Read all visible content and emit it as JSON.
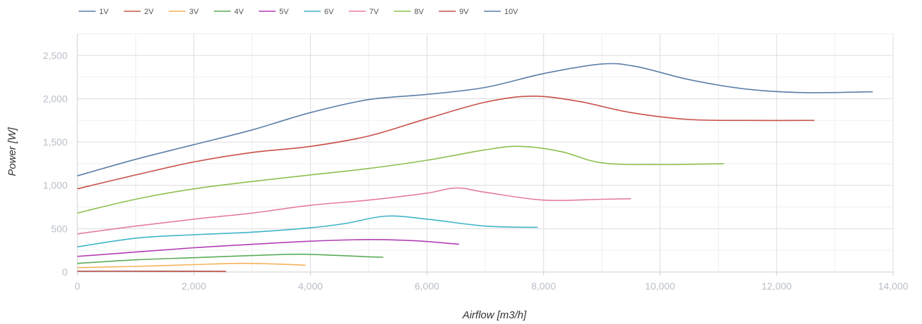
{
  "chart_data": {
    "type": "line",
    "title": "",
    "xlabel": "Airflow [m3/h]",
    "ylabel": "Power [W]",
    "xlim": [
      0,
      14000
    ],
    "ylim": [
      0,
      2750
    ],
    "x_ticks": [
      0,
      2000,
      4000,
      6000,
      8000,
      10000,
      12000,
      14000
    ],
    "x_tick_labels": [
      "0",
      "2,000",
      "4,000",
      "6,000",
      "8,000",
      "10,000",
      "12,000",
      "14,000"
    ],
    "y_ticks": [
      0,
      500,
      1000,
      1500,
      2000,
      2500
    ],
    "y_tick_labels": [
      "0",
      "500",
      "1,000",
      "1,500",
      "2,000",
      "2,500"
    ],
    "grid": true,
    "legend_position": "top-left",
    "series": [
      {
        "name": "1V",
        "color": "#5b7fa8",
        "points": [
          [
            0,
            10
          ],
          [
            1000,
            10
          ],
          [
            2000,
            9
          ],
          [
            2550,
            8
          ]
        ]
      },
      {
        "name": "2V",
        "color": "#cc5a4a",
        "points": [
          [
            0,
            8
          ],
          [
            1000,
            8
          ],
          [
            2000,
            7
          ],
          [
            2550,
            6
          ]
        ]
      },
      {
        "name": "3V",
        "color": "#f6b25c",
        "points": [
          [
            0,
            50
          ],
          [
            1000,
            65
          ],
          [
            2000,
            85
          ],
          [
            2800,
            100
          ],
          [
            3500,
            90
          ],
          [
            3920,
            78
          ]
        ]
      },
      {
        "name": "4V",
        "color": "#5aac58",
        "points": [
          [
            0,
            100
          ],
          [
            1000,
            140
          ],
          [
            2000,
            165
          ],
          [
            3000,
            190
          ],
          [
            3800,
            205
          ],
          [
            4500,
            190
          ],
          [
            5000,
            175
          ],
          [
            5250,
            170
          ]
        ]
      },
      {
        "name": "5V",
        "color": "#b23db5",
        "points": [
          [
            0,
            180
          ],
          [
            1000,
            230
          ],
          [
            2000,
            280
          ],
          [
            3000,
            320
          ],
          [
            4000,
            355
          ],
          [
            5000,
            375
          ],
          [
            5800,
            360
          ],
          [
            6550,
            320
          ]
        ]
      },
      {
        "name": "6V",
        "color": "#3fb4c9",
        "points": [
          [
            0,
            290
          ],
          [
            1000,
            390
          ],
          [
            2000,
            430
          ],
          [
            3000,
            460
          ],
          [
            4000,
            510
          ],
          [
            4600,
            560
          ],
          [
            5300,
            645
          ],
          [
            6000,
            610
          ],
          [
            7000,
            530
          ],
          [
            7900,
            515
          ]
        ]
      },
      {
        "name": "7V",
        "color": "#e57ca4",
        "points": [
          [
            0,
            440
          ],
          [
            1000,
            530
          ],
          [
            2000,
            610
          ],
          [
            3000,
            680
          ],
          [
            4000,
            770
          ],
          [
            5000,
            830
          ],
          [
            6000,
            910
          ],
          [
            6500,
            970
          ],
          [
            7000,
            920
          ],
          [
            8000,
            830
          ],
          [
            9000,
            840
          ],
          [
            9500,
            845
          ]
        ]
      },
      {
        "name": "8V",
        "color": "#8ebf4d",
        "points": [
          [
            0,
            680
          ],
          [
            1000,
            840
          ],
          [
            2000,
            960
          ],
          [
            3000,
            1045
          ],
          [
            4000,
            1120
          ],
          [
            5000,
            1195
          ],
          [
            6000,
            1290
          ],
          [
            7000,
            1410
          ],
          [
            7600,
            1450
          ],
          [
            8300,
            1390
          ],
          [
            9000,
            1260
          ],
          [
            10000,
            1240
          ],
          [
            11100,
            1250
          ]
        ]
      },
      {
        "name": "9V",
        "color": "#c8504a",
        "points": [
          [
            0,
            960
          ],
          [
            1000,
            1120
          ],
          [
            2000,
            1270
          ],
          [
            3000,
            1380
          ],
          [
            4000,
            1450
          ],
          [
            5000,
            1570
          ],
          [
            6000,
            1770
          ],
          [
            7000,
            1960
          ],
          [
            7800,
            2030
          ],
          [
            8600,
            1970
          ],
          [
            9500,
            1840
          ],
          [
            10500,
            1760
          ],
          [
            11500,
            1750
          ],
          [
            12650,
            1750
          ]
        ]
      },
      {
        "name": "10V",
        "color": "#5b7fa8",
        "points": [
          [
            0,
            1110
          ],
          [
            1000,
            1300
          ],
          [
            2000,
            1470
          ],
          [
            3000,
            1640
          ],
          [
            4000,
            1840
          ],
          [
            5000,
            1990
          ],
          [
            6000,
            2050
          ],
          [
            7000,
            2130
          ],
          [
            8000,
            2290
          ],
          [
            9000,
            2400
          ],
          [
            9600,
            2370
          ],
          [
            10500,
            2220
          ],
          [
            11500,
            2110
          ],
          [
            12500,
            2070
          ],
          [
            13650,
            2080
          ]
        ]
      }
    ]
  }
}
